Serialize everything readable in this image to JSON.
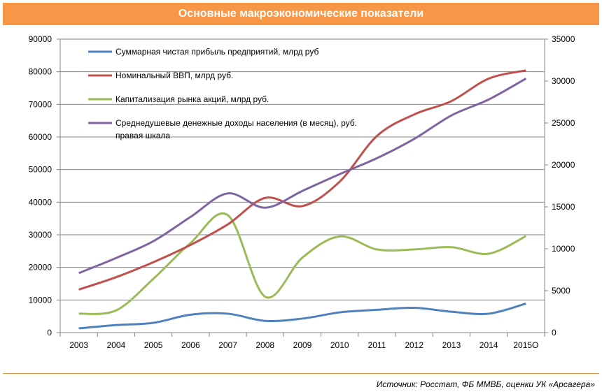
{
  "header": {
    "title": "Основные макроэкономические показатели"
  },
  "footer": {
    "source": "Источник: Росстат, ФБ ММВБ, оценки УК «Арсагера»"
  },
  "chart_data": {
    "type": "line",
    "categories": [
      "2003",
      "2004",
      "2005",
      "2006",
      "2007",
      "2008",
      "2009",
      "2010",
      "2011",
      "2012",
      "2013",
      "2014",
      "2015О"
    ],
    "ylim": [
      0,
      90000
    ],
    "yticks": [
      0,
      10000,
      20000,
      30000,
      40000,
      50000,
      60000,
      70000,
      80000,
      90000
    ],
    "y2lim": [
      0,
      35000
    ],
    "y2ticks": [
      0,
      5000,
      10000,
      15000,
      20000,
      25000,
      30000,
      35000
    ],
    "grid": true,
    "legend_position": "top-left",
    "series": [
      {
        "name": "Суммарная чистая прибыль предприятий, млрд руб",
        "axis": "left",
        "color": "#4f81bd",
        "values": [
          1300,
          2300,
          3000,
          5500,
          5800,
          3600,
          4300,
          6200,
          7000,
          7600,
          6400,
          5800,
          8900
        ]
      },
      {
        "name": "Номинальный ВВП, млрд руб.",
        "axis": "left",
        "color": "#c0504d",
        "values": [
          13200,
          17000,
          21600,
          26900,
          33200,
          41300,
          38800,
          46300,
          60300,
          66900,
          71000,
          77900,
          80400
        ]
      },
      {
        "name": "Капитализация рынка акций, млрд руб.",
        "axis": "left",
        "color": "#9bbb59",
        "values": [
          5800,
          6800,
          16500,
          27500,
          36000,
          11000,
          23000,
          29500,
          25500,
          25500,
          26200,
          24200,
          29600
        ]
      },
      {
        "name": "Среднедушевые денежные доходы населения (в месяц), руб. правая шкала",
        "axis": "right",
        "color": "#8064a2",
        "values": [
          7100,
          8900,
          10900,
          13800,
          16600,
          14900,
          16900,
          18900,
          20800,
          23100,
          25900,
          27800,
          30300
        ]
      }
    ],
    "legend_lines": [
      [
        "Суммарная чистая прибыль предприятий, млрд руб"
      ],
      [
        "Номинальный ВВП, млрд руб."
      ],
      [
        "Капитализация рынка акций, млрд руб."
      ],
      [
        "Среднедушевые денежные доходы населения (в месяц), руб.",
        "правая шкала"
      ]
    ]
  }
}
